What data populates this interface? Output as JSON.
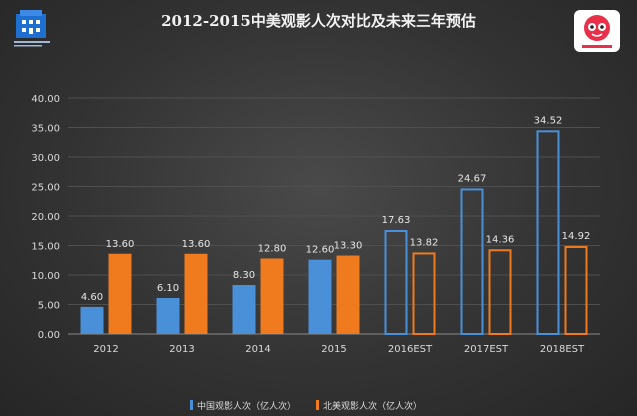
{
  "chart_data": {
    "type": "bar",
    "title": "2012-2015中美观影人次对比及未来三年预估",
    "categories": [
      "2012",
      "2013",
      "2014",
      "2015",
      "2016EST",
      "2017EST",
      "2018EST"
    ],
    "ylim": [
      0,
      40
    ],
    "yticks": [
      "0.00",
      "5.00",
      "10.00",
      "15.00",
      "20.00",
      "25.00",
      "30.00",
      "35.00",
      "40.00"
    ],
    "grid": true,
    "legend_position": "bottom",
    "series": [
      {
        "name": "中国观影人次（亿人次）",
        "color": "#4a90d9",
        "values": [
          4.6,
          6.1,
          8.3,
          12.6,
          17.63,
          24.67,
          34.52
        ],
        "labels": [
          "4.60",
          "6.10",
          "8.30",
          "12.60",
          "17.63",
          "24.67",
          "34.52"
        ],
        "estimated": [
          false,
          false,
          false,
          false,
          true,
          true,
          true
        ]
      },
      {
        "name": "北美观影人次（亿人次）",
        "color": "#f07a1e",
        "values": [
          13.6,
          13.6,
          12.8,
          13.3,
          13.82,
          14.36,
          14.92
        ],
        "labels": [
          "13.60",
          "13.60",
          "12.80",
          "13.30",
          "13.82",
          "14.36",
          "14.92"
        ],
        "estimated": [
          false,
          false,
          false,
          false,
          true,
          true,
          true
        ]
      }
    ]
  },
  "logos": {
    "left_icon": "building-logo-icon",
    "right_icon": "cartoon-face-logo-icon",
    "right_color": "#e8304a"
  }
}
